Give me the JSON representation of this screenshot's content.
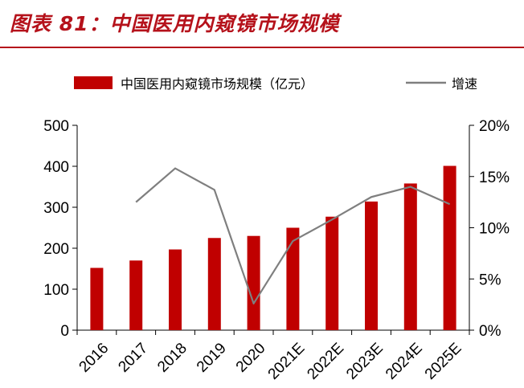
{
  "figure_title": "图表 81：中国医用内窥镜市场规模",
  "chart_data": {
    "type": "bar",
    "categories": [
      "2016",
      "2017",
      "2018",
      "2019",
      "2020",
      "2021E",
      "2022E",
      "2023E",
      "2024E",
      "2025E"
    ],
    "series": [
      {
        "name": "中国医用内窥镜市场规模（亿元）",
        "type": "bar",
        "axis": "left",
        "color": "#c00000",
        "values": [
          152,
          170,
          197,
          225,
          230,
          250,
          277,
          314,
          358,
          401
        ]
      },
      {
        "name": "增速",
        "type": "line",
        "axis": "right",
        "color": "#7f7f7f",
        "values": [
          null,
          12.5,
          15.8,
          13.7,
          2.6,
          8.7,
          10.8,
          13.0,
          14.0,
          12.3
        ]
      }
    ],
    "y_left": {
      "min": 0,
      "max": 500,
      "ticks": [
        0,
        100,
        200,
        300,
        400,
        500
      ]
    },
    "y_right": {
      "min": 0,
      "max": 20,
      "ticks": [
        "0%",
        "5%",
        "10%",
        "15%",
        "20%"
      ]
    },
    "legend_position": "top",
    "grid": false
  }
}
